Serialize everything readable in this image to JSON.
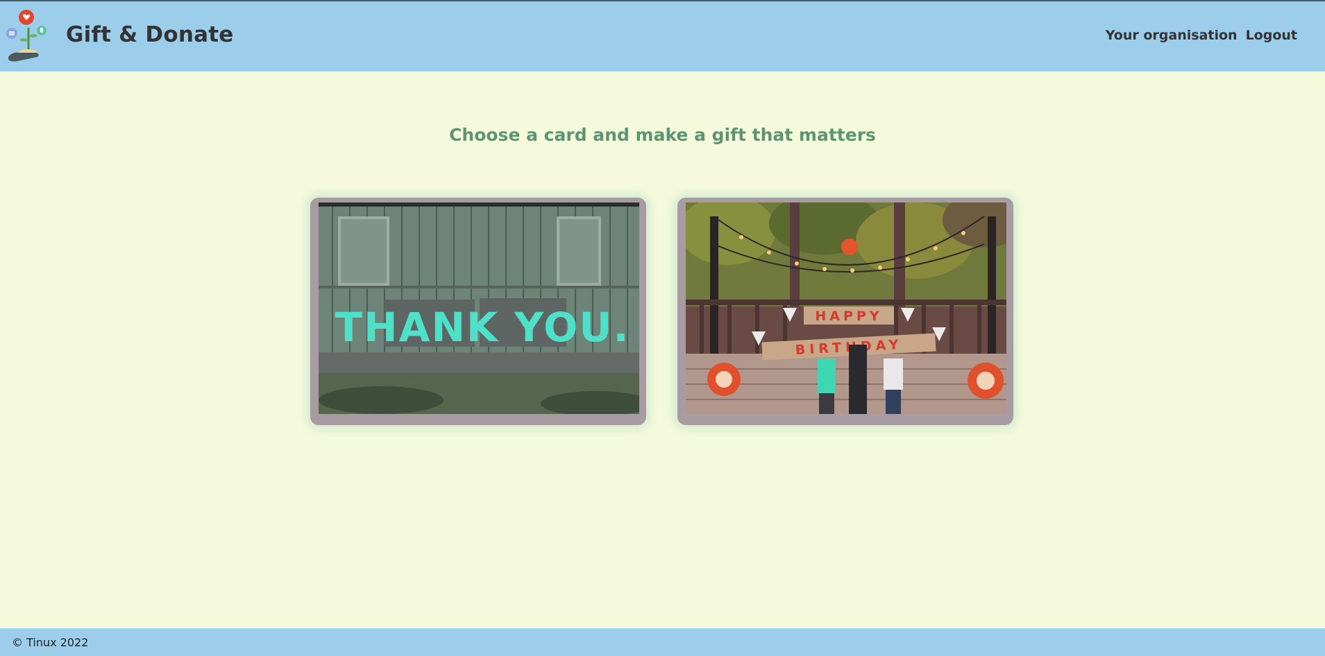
{
  "header": {
    "brand_title": "Gift & Donate",
    "nav": {
      "organisation_label": "Your organisation",
      "logout_label": "Logout"
    }
  },
  "main": {
    "heading": "Choose a card and make a gift that matters",
    "cards": [
      {
        "name": "thank-you-card",
        "image_text": "THANK YOU."
      },
      {
        "name": "happy-birthday-card",
        "banner_top": "HAPPY",
        "banner_bottom": "BIRTHDAY"
      }
    ]
  },
  "footer": {
    "copyright": "© Tinux 2022"
  },
  "colors": {
    "header_bg": "#9ccdeb",
    "page_bg": "#f6fadc",
    "heading_text": "#5e9470",
    "card_glow": "#d2ead0"
  }
}
